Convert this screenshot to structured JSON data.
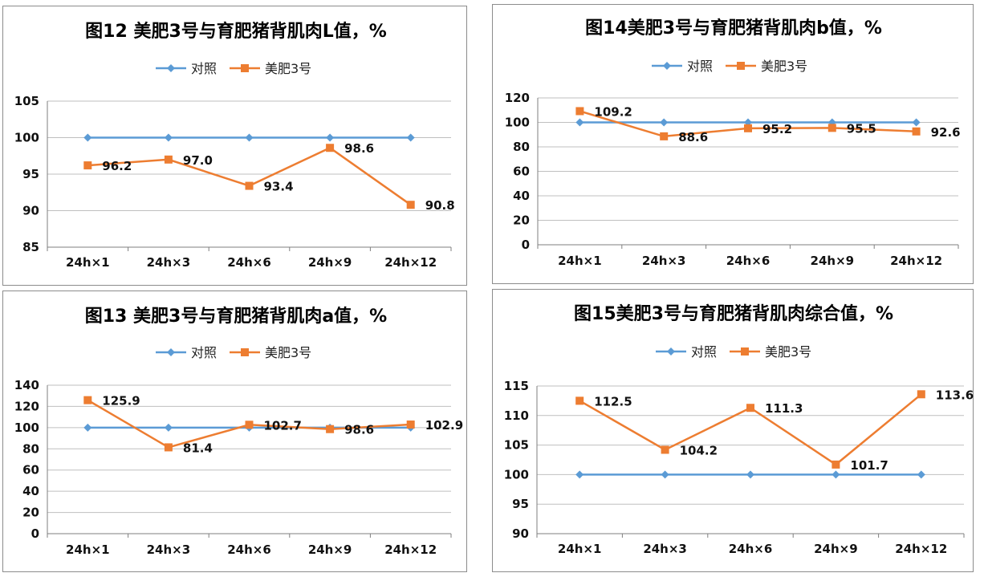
{
  "colors": {
    "control": "#5b9bd5",
    "treatment": "#ed7d31",
    "grid": "#bfbfbf",
    "axis": "#7f7f7f"
  },
  "chart_data": [
    {
      "type": "line",
      "title": "图12 美肥3号与育肥猪背肌肉L值，%",
      "categories": [
        "24h×1",
        "24h×3",
        "24h×6",
        "24h×9",
        "24h×12"
      ],
      "yticks": [
        "85",
        "90",
        "95",
        "100",
        "105"
      ],
      "ylim": [
        85,
        105
      ],
      "series": [
        {
          "name": "对照",
          "values": [
            100,
            100,
            100,
            100,
            100
          ]
        },
        {
          "name": "美肥3号",
          "values": [
            96.2,
            97.0,
            93.4,
            98.6,
            90.8
          ],
          "labels": [
            "96.2",
            "97.0",
            "93.4",
            "98.6",
            "90.8"
          ]
        }
      ]
    },
    {
      "type": "line",
      "title": "图14美肥3号与育肥猪背肌肉b值，%",
      "categories": [
        "24h×1",
        "24h×3",
        "24h×6",
        "24h×9",
        "24h×12"
      ],
      "yticks": [
        "0",
        "20",
        "40",
        "60",
        "80",
        "100",
        "120"
      ],
      "ylim": [
        0,
        120
      ],
      "series": [
        {
          "name": "对照",
          "values": [
            100,
            100,
            100,
            100,
            100
          ]
        },
        {
          "name": "美肥3号",
          "values": [
            109.2,
            88.6,
            95.2,
            95.5,
            92.6
          ],
          "labels": [
            "109.2",
            "88.6",
            "95.2",
            "95.5",
            "92.6"
          ]
        }
      ]
    },
    {
      "type": "line",
      "title": "图13 美肥3号与育肥猪背肌肉a值，%",
      "categories": [
        "24h×1",
        "24h×3",
        "24h×6",
        "24h×9",
        "24h×12"
      ],
      "yticks": [
        "0",
        "20",
        "40",
        "60",
        "80",
        "100",
        "120",
        "140"
      ],
      "ylim": [
        0,
        140
      ],
      "series": [
        {
          "name": "对照",
          "values": [
            100,
            100,
            100,
            100,
            100
          ]
        },
        {
          "name": "美肥3号",
          "values": [
            125.9,
            81.4,
            102.7,
            98.6,
            102.9
          ],
          "labels": [
            "125.9",
            "81.4",
            "102.7",
            "98.6",
            "102.9"
          ]
        }
      ]
    },
    {
      "type": "line",
      "title": "图15美肥3号与育肥猪背肌肉综合值，%",
      "categories": [
        "24h×1",
        "24h×3",
        "24h×6",
        "24h×9",
        "24h×12"
      ],
      "yticks": [
        "90",
        "95",
        "100",
        "105",
        "110",
        "115"
      ],
      "ylim": [
        90,
        115
      ],
      "series": [
        {
          "name": "对照",
          "values": [
            100,
            100,
            100,
            100,
            100
          ]
        },
        {
          "name": "美肥3号",
          "values": [
            112.5,
            104.2,
            111.3,
            101.7,
            113.6
          ],
          "labels": [
            "112.5",
            "104.2",
            "111.3",
            "101.7",
            "113.6"
          ]
        }
      ]
    }
  ]
}
